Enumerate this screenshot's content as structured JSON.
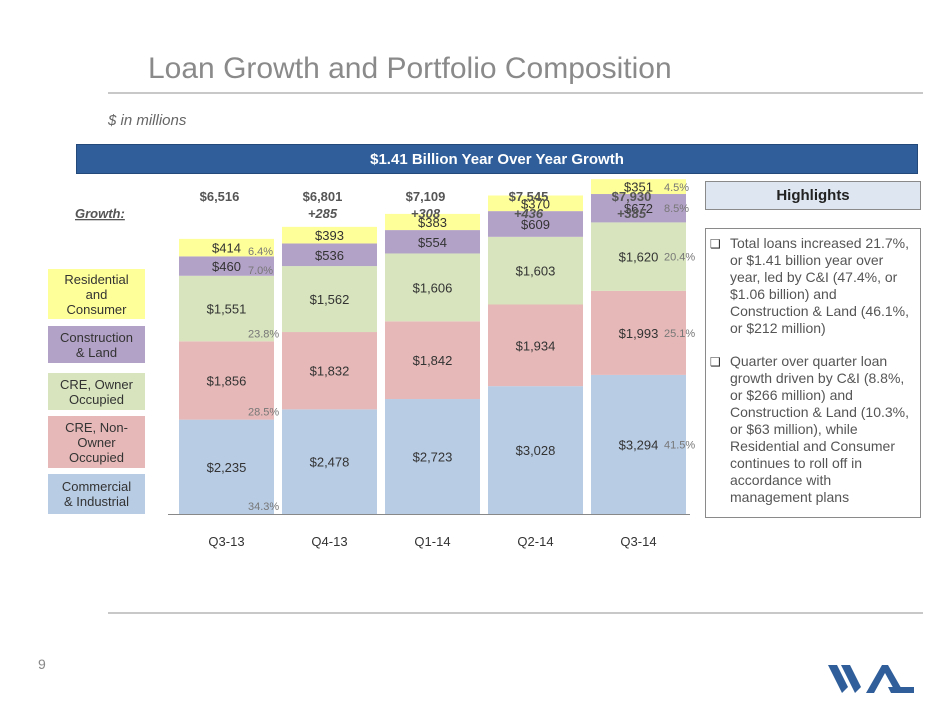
{
  "title": "Loan Growth and Portfolio Composition",
  "subtitle": "$ in millions",
  "banner": "$1.41 Billion Year Over Year Growth",
  "growth_label": "Growth:",
  "page_number": "9",
  "highlights": {
    "header": "Highlights",
    "items": [
      "Total loans increased 21.7%, or $1.41 billion year over year, led by C&I (47.4%, or $1.06 billion) and Construction & Land (46.1%, or $212 million)",
      "Quarter over quarter loan growth driven by C&I (8.8%, or $266 million) and Construction & Land (10.3%, or $63 million), while Residential and Consumer continues to roll off in accordance with management plans"
    ]
  },
  "chart_data": {
    "type": "bar",
    "stacked": true,
    "categories": [
      "Q3-13",
      "Q4-13",
      "Q1-14",
      "Q2-14",
      "Q3-14"
    ],
    "totals": [
      "$6,516",
      "$6,801",
      "$7,109",
      "$7,545",
      "$7,930"
    ],
    "growth": [
      "",
      "+285",
      "+308",
      "+436",
      "+385"
    ],
    "series": [
      {
        "name": "Commercial & Industrial",
        "legend_lines": [
          "Commercial",
          "& Industrial"
        ],
        "color": "#b8cce4",
        "values": [
          2235,
          2478,
          2723,
          3028,
          3294
        ],
        "labels": [
          "$2,235",
          "$2,478",
          "$2,723",
          "$3,028",
          "$3,294"
        ]
      },
      {
        "name": "CRE, Non-Owner Occupied",
        "legend_lines": [
          "CRE, Non-",
          "Owner",
          "Occupied"
        ],
        "color": "#e6b9b8",
        "values": [
          1856,
          1832,
          1842,
          1934,
          1993
        ],
        "labels": [
          "$1,856",
          "$1,832",
          "$1,842",
          "$1,934",
          "$1,993"
        ]
      },
      {
        "name": "CRE, Owner Occupied",
        "legend_lines": [
          "CRE, Owner",
          "Occupied"
        ],
        "color": "#d7e4bd",
        "values": [
          1551,
          1562,
          1606,
          1603,
          1620
        ],
        "labels": [
          "$1,551",
          "$1,562",
          "$1,606",
          "$1,603",
          "$1,620"
        ]
      },
      {
        "name": "Construction & Land",
        "legend_lines": [
          "Construction",
          "& Land"
        ],
        "color": "#b3a2c7",
        "values": [
          460,
          536,
          554,
          609,
          672
        ],
        "labels": [
          "$460",
          "$536",
          "$554",
          "$609",
          "$672"
        ]
      },
      {
        "name": "Residential and Consumer",
        "legend_lines": [
          "Residential",
          "and",
          "Consumer"
        ],
        "color": "#ffff99",
        "values": [
          414,
          393,
          383,
          370,
          351
        ],
        "labels": [
          "$414",
          "$393",
          "$383",
          "$370",
          "$351"
        ]
      }
    ],
    "q3_13_percentages": [
      "34.3%",
      "28.5%",
      "23.8%",
      "7.0%",
      "6.4%"
    ],
    "q3_14_percentages": [
      "41.5%",
      "25.1%",
      "20.4%",
      "8.5%",
      "4.5%"
    ]
  }
}
